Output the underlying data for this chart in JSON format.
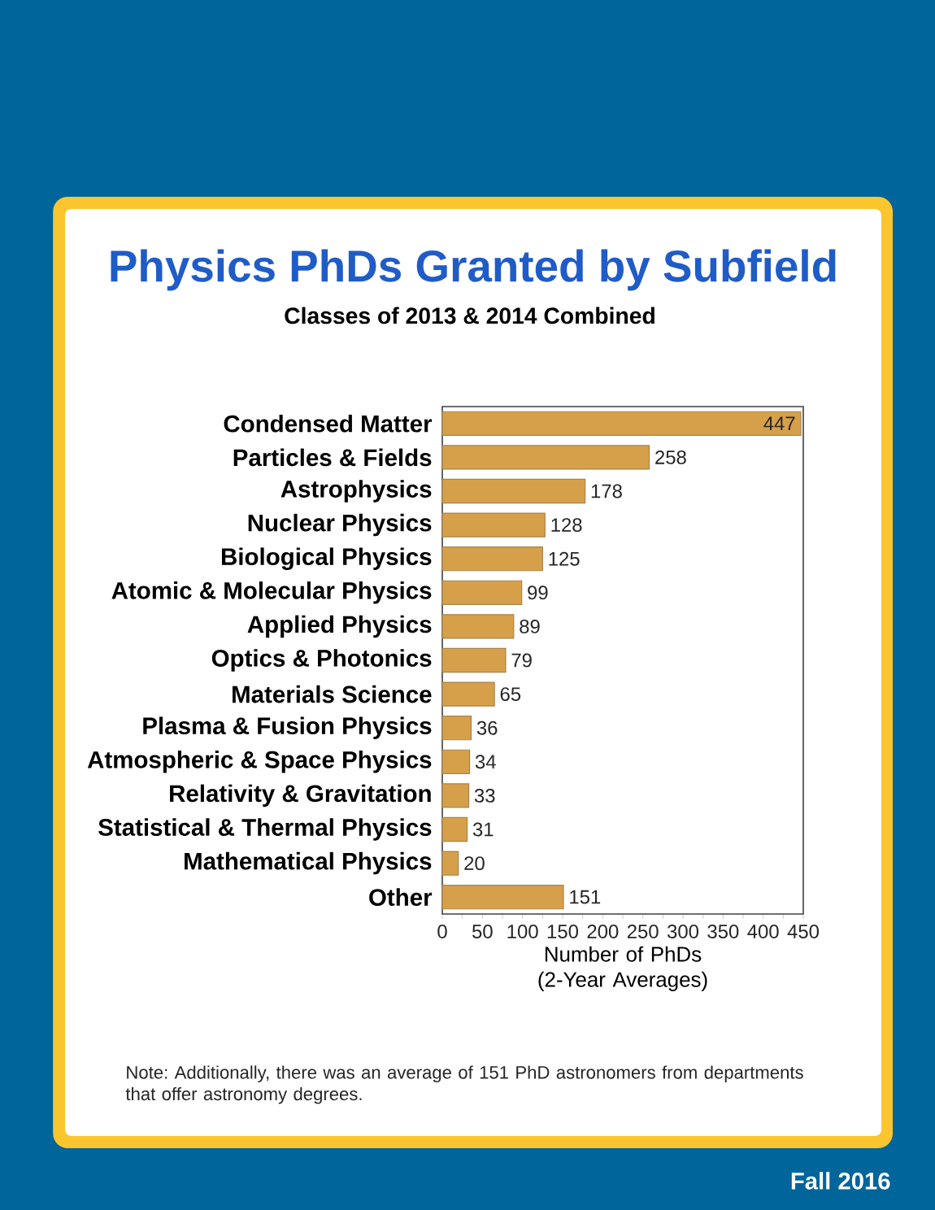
{
  "chart_data": {
    "type": "bar",
    "orientation": "horizontal",
    "title": "Physics PhDs Granted by Subfield",
    "subtitle": "Classes of 2013 & 2014 Combined",
    "categories": [
      "Condensed Matter",
      "Particles & Fields",
      "Astrophysics",
      "Nuclear Physics",
      "Biological Physics",
      "Atomic & Molecular Physics",
      "Applied Physics",
      "Optics & Photonics",
      "Materials Science",
      "Plasma & Fusion Physics",
      "Atmospheric & Space Physics",
      "Relativity & Gravitation",
      "Statistical & Thermal Physics",
      "Mathematical Physics",
      "Other"
    ],
    "values": [
      447,
      258,
      178,
      128,
      125,
      99,
      89,
      79,
      65,
      36,
      34,
      33,
      31,
      20,
      151
    ],
    "color": "#d6a04a",
    "data_labels": true,
    "xlabel": "Number of PhDs (2-Year Averages)",
    "xlim": [
      0,
      450
    ],
    "xticks": [
      0,
      {
        "value": 25,
        "label": null
      },
      50,
      {
        "value": 75,
        "label": null
      },
      100,
      {
        "value": 125,
        "label": null
      },
      150,
      {
        "value": 175,
        "label": null
      },
      200,
      {
        "value": 225,
        "label": null
      },
      250,
      {
        "value": 275,
        "label": null
      },
      300,
      {
        "value": 325,
        "label": null
      },
      350,
      {
        "value": 375,
        "label": null
      },
      400,
      {
        "value": 425,
        "label": null
      },
      450
    ],
    "annotations": [
      "Note: Additionally, there was an average of 151 PhD astronomers from departments that offer astronomy degrees.",
      "Fall 2016"
    ]
  }
}
